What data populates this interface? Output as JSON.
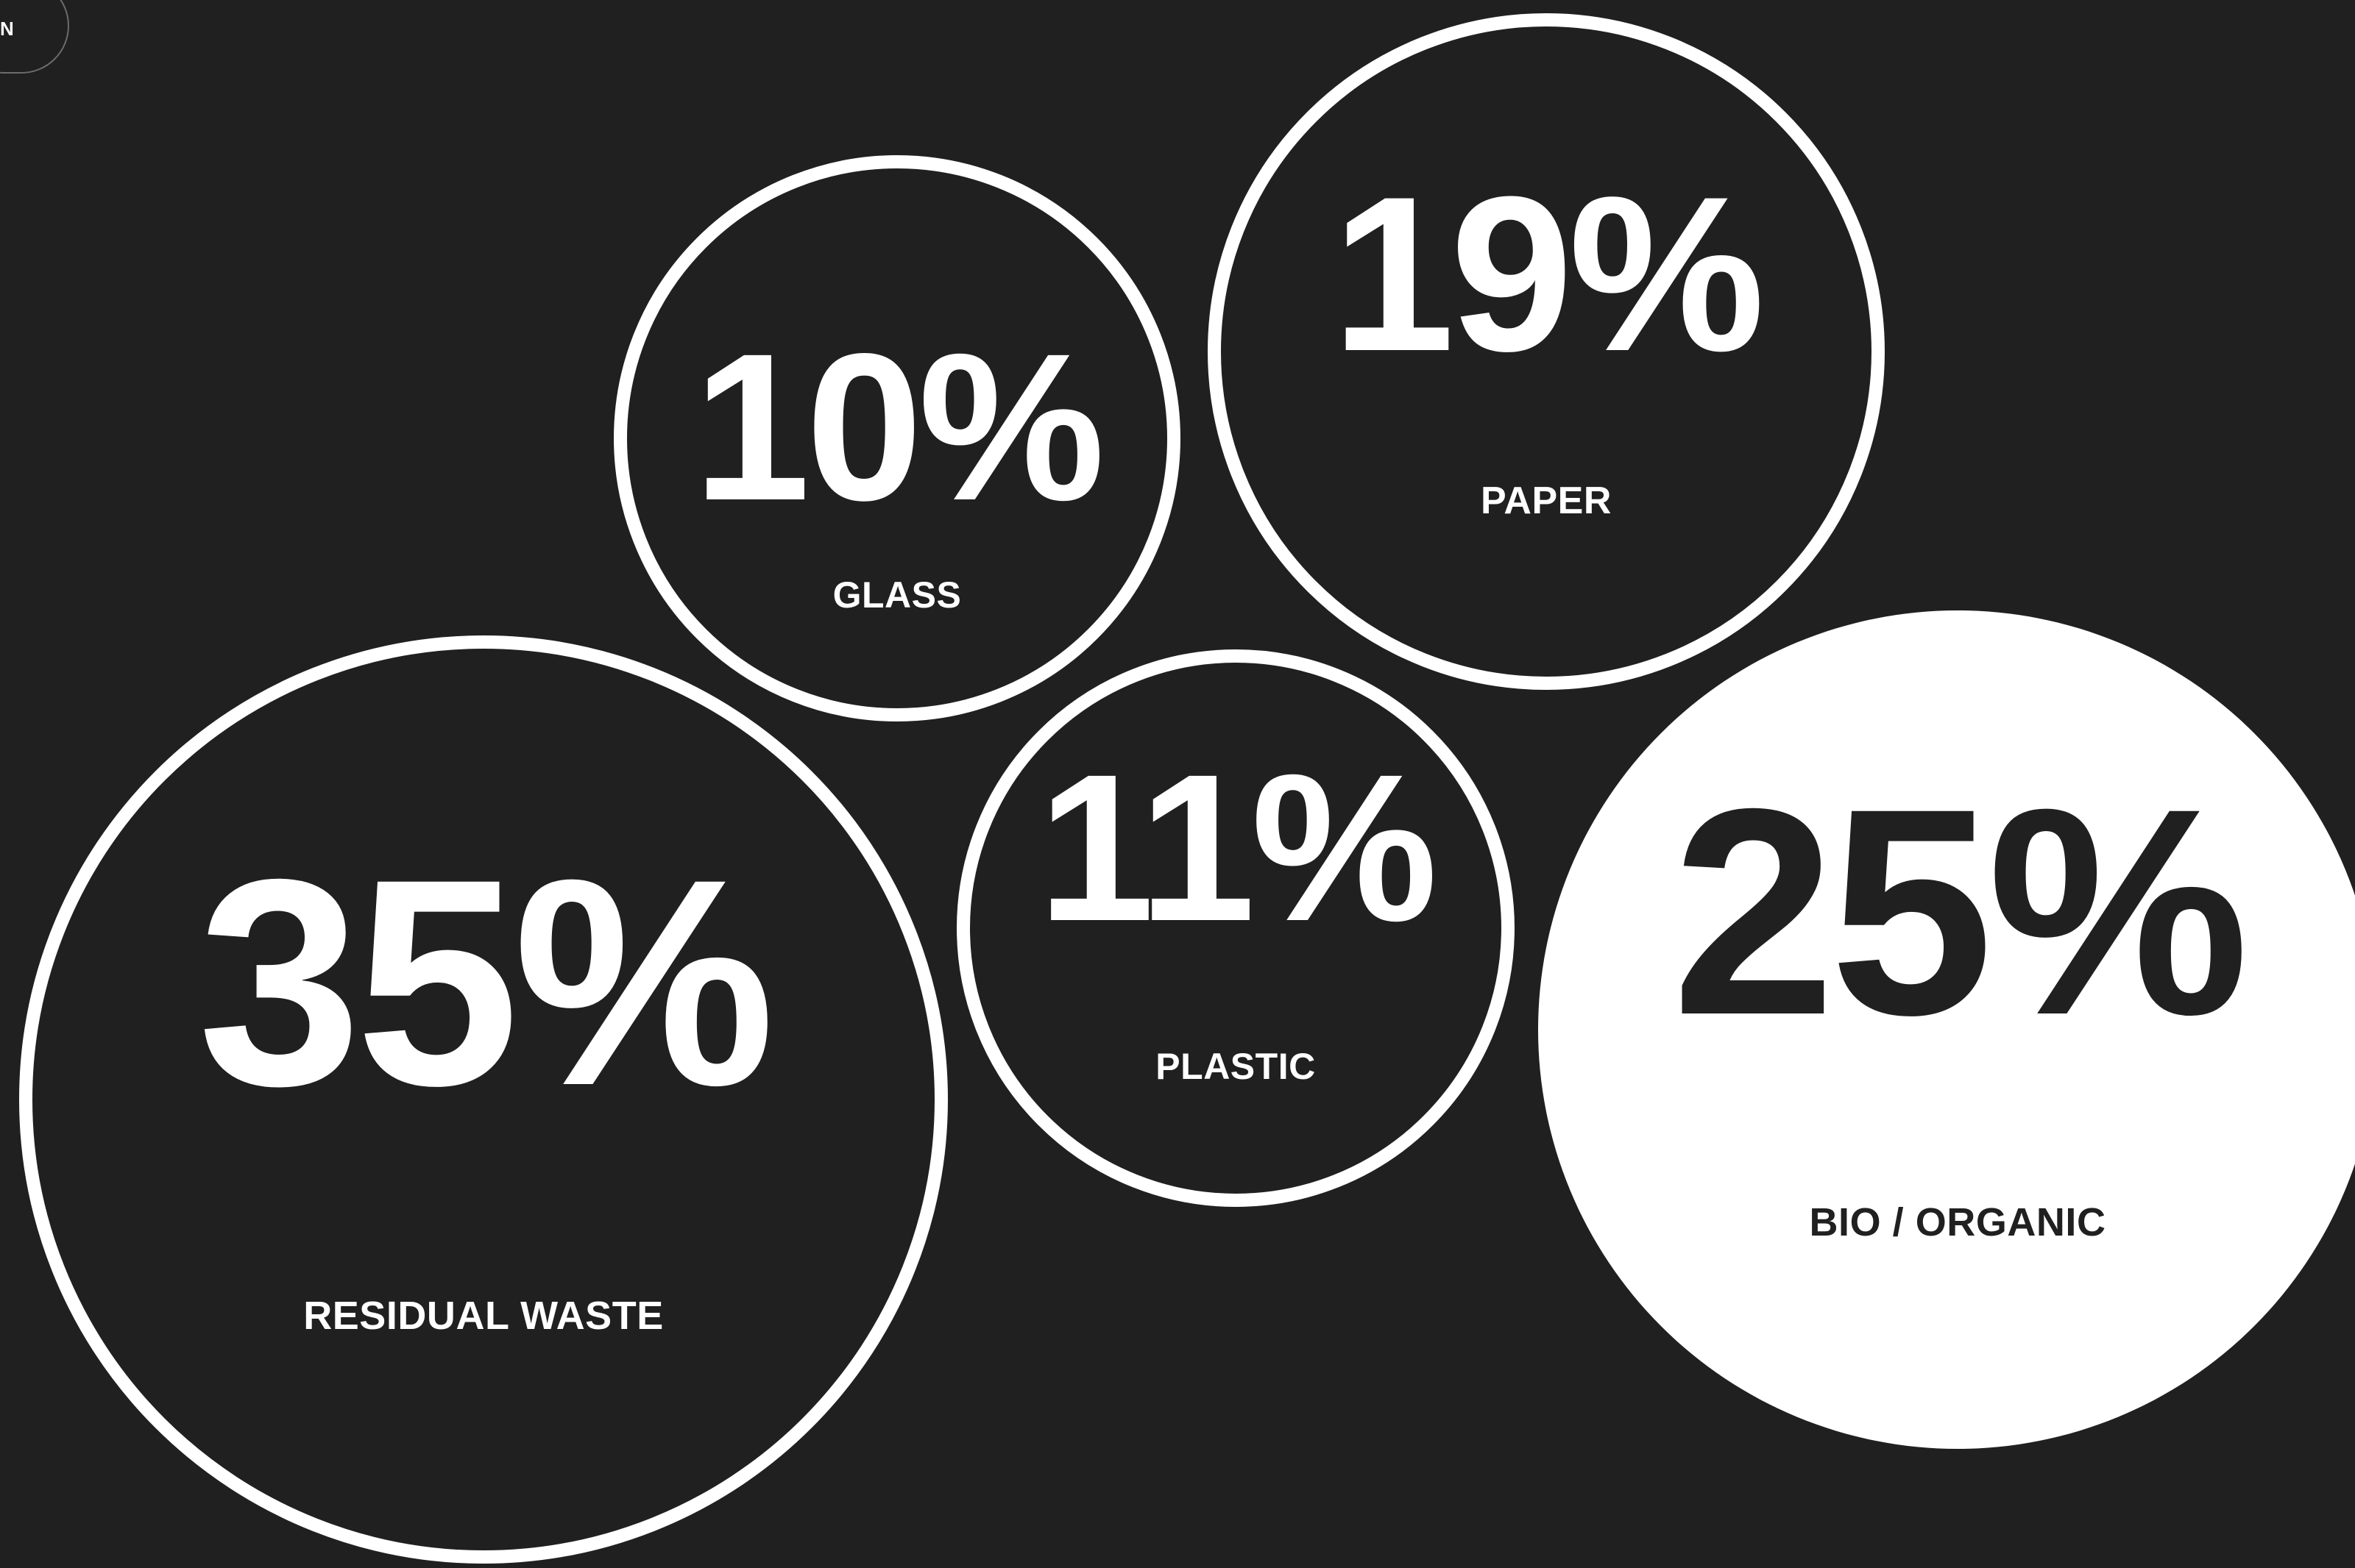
{
  "top_chip": {
    "label": "N"
  },
  "chart_data": {
    "type": "bubble",
    "unit": "%",
    "categories": [
      "GLASS",
      "PAPER",
      "RESIDUAL WASTE",
      "PLASTIC",
      "BIO / ORGANIC"
    ],
    "values": [
      10,
      19,
      35,
      11,
      25
    ],
    "items": [
      {
        "category": "GLASS",
        "value": 10,
        "display": "10%",
        "highlighted": false
      },
      {
        "category": "PAPER",
        "value": 19,
        "display": "19%",
        "highlighted": false
      },
      {
        "category": "RESIDUAL WASTE",
        "value": 35,
        "display": "35%",
        "highlighted": false
      },
      {
        "category": "PLASTIC",
        "value": 11,
        "display": "11%",
        "highlighted": false
      },
      {
        "category": "BIO / ORGANIC",
        "value": 25,
        "display": "25%",
        "highlighted": true
      }
    ],
    "colors": {
      "background": "#202020",
      "outline": "#ffffff",
      "text_on_dark": "#ffffff",
      "highlight_fill": "#ffffff",
      "text_on_highlight": "#202020"
    }
  }
}
